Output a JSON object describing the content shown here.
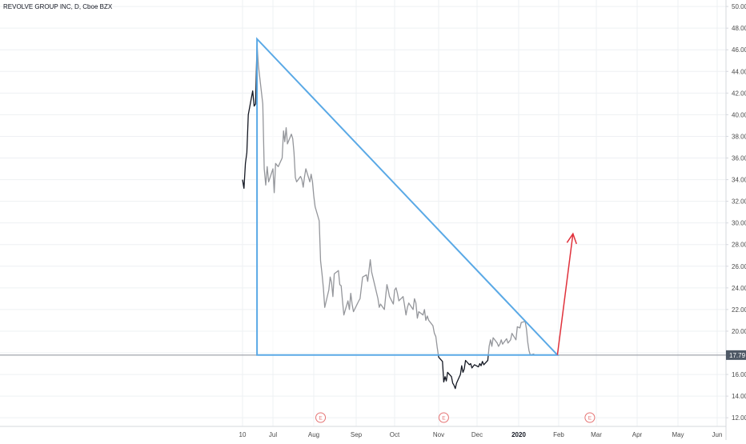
{
  "title": "REVOLVE GROUP INC, D, Cboe BZX",
  "colors": {
    "background": "#ffffff",
    "grid": "#eef0f3",
    "axis_text": "#4a4a4a",
    "price_line": "#131722",
    "price_line_faded": "#9a9a9a",
    "triangle": "#5aa9e6",
    "arrow": "#e0313b",
    "last_price_badge": "#4f5966",
    "earnings_marker": "#e57373"
  },
  "chart_data": {
    "type": "line",
    "title": "REVOLVE GROUP INC, D, Cboe BZX",
    "ylim": [
      11.2,
      50.6
    ],
    "price_axis_ticks": [
      "12.00",
      "14.00",
      "16.00",
      "18.00",
      "20.00",
      "22.00",
      "24.00",
      "26.00",
      "28.00",
      "30.00",
      "32.00",
      "34.00",
      "36.00",
      "38.00",
      "40.00",
      "42.00",
      "44.00",
      "46.00",
      "48.00",
      "50.00"
    ],
    "time_axis": [
      "10",
      "Jul",
      "Aug",
      "Sep",
      "Oct",
      "Nov",
      "Dec",
      "2020",
      "Feb",
      "Mar",
      "Apr",
      "May",
      "Jun"
    ],
    "time_axis_bold": [
      "2020"
    ],
    "last_price": "17.79",
    "grid": true,
    "series": [
      {
        "values": [
          [
            "2019-06-10",
            34.0
          ],
          [
            "2019-06-11",
            33.2
          ],
          [
            "2019-06-12",
            35.5
          ],
          [
            "2019-06-13",
            36.5
          ],
          [
            "2019-06-14",
            40.0
          ],
          [
            "2019-06-17",
            42.2
          ],
          [
            "2019-06-18",
            40.8
          ],
          [
            "2019-06-19",
            41.0
          ],
          [
            "2019-06-20",
            46.5
          ],
          [
            "2019-06-21",
            44.5
          ],
          [
            "2019-06-24",
            41.0
          ],
          [
            "2019-06-25",
            35.0
          ],
          [
            "2019-06-26",
            33.5
          ],
          [
            "2019-06-27",
            35.2
          ],
          [
            "2019-06-28",
            33.8
          ],
          [
            "2019-07-01",
            35.0
          ],
          [
            "2019-07-02",
            32.8
          ],
          [
            "2019-07-03",
            35.5
          ],
          [
            "2019-07-05",
            35.2
          ],
          [
            "2019-07-08",
            36.0
          ],
          [
            "2019-07-09",
            38.5
          ],
          [
            "2019-07-10",
            37.5
          ],
          [
            "2019-07-11",
            38.8
          ],
          [
            "2019-07-12",
            37.3
          ],
          [
            "2019-07-15",
            38.2
          ],
          [
            "2019-07-16",
            37.8
          ],
          [
            "2019-07-17",
            36.5
          ],
          [
            "2019-07-18",
            34.2
          ],
          [
            "2019-07-19",
            33.8
          ],
          [
            "2019-07-22",
            34.3
          ],
          [
            "2019-07-23",
            34.0
          ],
          [
            "2019-07-24",
            33.3
          ],
          [
            "2019-07-25",
            34.3
          ],
          [
            "2019-07-26",
            35.0
          ],
          [
            "2019-07-29",
            33.8
          ],
          [
            "2019-07-30",
            34.5
          ],
          [
            "2019-07-31",
            33.8
          ],
          [
            "2019-08-01",
            32.5
          ],
          [
            "2019-08-02",
            31.5
          ],
          [
            "2019-08-05",
            30.2
          ],
          [
            "2019-08-06",
            26.5
          ],
          [
            "2019-08-07",
            25.3
          ],
          [
            "2019-08-08",
            24.0
          ],
          [
            "2019-08-09",
            22.2
          ],
          [
            "2019-08-12",
            23.8
          ],
          [
            "2019-08-13",
            25.0
          ],
          [
            "2019-08-14",
            24.5
          ],
          [
            "2019-08-15",
            23.2
          ],
          [
            "2019-08-16",
            25.3
          ],
          [
            "2019-08-19",
            25.6
          ],
          [
            "2019-08-20",
            24.3
          ],
          [
            "2019-08-21",
            24.2
          ],
          [
            "2019-08-22",
            22.8
          ],
          [
            "2019-08-23",
            21.5
          ],
          [
            "2019-08-26",
            22.8
          ],
          [
            "2019-08-27",
            22.0
          ],
          [
            "2019-08-28",
            23.5
          ],
          [
            "2019-08-29",
            22.5
          ],
          [
            "2019-08-30",
            21.8
          ],
          [
            "2019-09-03",
            22.8
          ],
          [
            "2019-09-04",
            23.0
          ],
          [
            "2019-09-05",
            24.0
          ],
          [
            "2019-09-06",
            25.0
          ],
          [
            "2019-09-09",
            25.2
          ],
          [
            "2019-09-10",
            24.6
          ],
          [
            "2019-09-11",
            25.6
          ],
          [
            "2019-09-12",
            26.6
          ],
          [
            "2019-09-13",
            25.5
          ],
          [
            "2019-09-16",
            24.0
          ],
          [
            "2019-09-17",
            23.5
          ],
          [
            "2019-09-18",
            23.0
          ],
          [
            "2019-09-19",
            22.2
          ],
          [
            "2019-09-20",
            22.5
          ],
          [
            "2019-09-23",
            22.0
          ],
          [
            "2019-09-24",
            23.2
          ],
          [
            "2019-09-25",
            24.3
          ],
          [
            "2019-09-26",
            23.8
          ],
          [
            "2019-09-27",
            23.2
          ],
          [
            "2019-09-30",
            22.5
          ],
          [
            "2019-10-01",
            23.8
          ],
          [
            "2019-10-02",
            24.0
          ],
          [
            "2019-10-03",
            23.5
          ],
          [
            "2019-10-04",
            22.8
          ],
          [
            "2019-10-07",
            23.2
          ],
          [
            "2019-10-08",
            22.4
          ],
          [
            "2019-10-09",
            21.5
          ],
          [
            "2019-10-10",
            22.2
          ],
          [
            "2019-10-11",
            22.6
          ],
          [
            "2019-10-14",
            22.0
          ],
          [
            "2019-10-15",
            23.0
          ],
          [
            "2019-10-16",
            22.6
          ],
          [
            "2019-10-17",
            21.2
          ],
          [
            "2019-10-18",
            21.8
          ],
          [
            "2019-10-21",
            21.5
          ],
          [
            "2019-10-22",
            22.0
          ],
          [
            "2019-10-23",
            21.0
          ],
          [
            "2019-10-24",
            21.4
          ],
          [
            "2019-10-25",
            21.0
          ],
          [
            "2019-10-28",
            20.5
          ],
          [
            "2019-10-29",
            19.8
          ],
          [
            "2019-10-30",
            19.5
          ],
          [
            "2019-10-31",
            18.5
          ],
          [
            "2019-11-01",
            17.6
          ],
          [
            "2019-11-04",
            17.2
          ],
          [
            "2019-11-05",
            15.3
          ],
          [
            "2019-11-06",
            15.8
          ],
          [
            "2019-11-07",
            15.4
          ],
          [
            "2019-11-08",
            16.2
          ],
          [
            "2019-11-11",
            15.8
          ],
          [
            "2019-11-12",
            15.2
          ],
          [
            "2019-11-13",
            15.0
          ],
          [
            "2019-11-14",
            14.7
          ],
          [
            "2019-11-15",
            15.2
          ],
          [
            "2019-11-18",
            16.0
          ],
          [
            "2019-11-19",
            16.8
          ],
          [
            "2019-11-20",
            16.2
          ],
          [
            "2019-11-21",
            16.5
          ],
          [
            "2019-11-22",
            17.3
          ],
          [
            "2019-11-25",
            16.9
          ],
          [
            "2019-11-26",
            17.0
          ],
          [
            "2019-11-27",
            16.6
          ],
          [
            "2019-11-29",
            16.9
          ],
          [
            "2019-12-02",
            16.7
          ],
          [
            "2019-12-03",
            17.0
          ],
          [
            "2019-12-04",
            16.8
          ],
          [
            "2019-12-05",
            17.2
          ],
          [
            "2019-12-06",
            16.9
          ],
          [
            "2019-12-09",
            17.3
          ],
          [
            "2019-12-10",
            18.6
          ],
          [
            "2019-12-11",
            19.2
          ],
          [
            "2019-12-12",
            18.6
          ],
          [
            "2019-12-13",
            19.4
          ],
          [
            "2019-12-16",
            18.9
          ],
          [
            "2019-12-17",
            18.6
          ],
          [
            "2019-12-18",
            18.8
          ],
          [
            "2019-12-19",
            19.2
          ],
          [
            "2019-12-20",
            18.8
          ],
          [
            "2019-12-23",
            19.3
          ],
          [
            "2019-12-24",
            18.9
          ],
          [
            "2019-12-26",
            19.2
          ],
          [
            "2019-12-27",
            19.8
          ],
          [
            "2019-12-30",
            19.2
          ],
          [
            "2019-12-31",
            20.4
          ],
          [
            "2020-01-02",
            20.3
          ],
          [
            "2020-01-03",
            20.8
          ],
          [
            "2020-01-06",
            20.9
          ],
          [
            "2020-01-07",
            20.2
          ],
          [
            "2020-01-08",
            19.0
          ],
          [
            "2020-01-09",
            18.2
          ],
          [
            "2020-01-10",
            17.8
          ],
          [
            "2020-01-13",
            17.9
          ]
        ]
      }
    ],
    "annotations": {
      "earnings_markers": [
        "E",
        "E",
        "E"
      ],
      "earnings_dates": [
        "2019-08-06",
        "2019-11-05",
        "2020-02-25"
      ],
      "triangle": [
        [
          "2019-06-20",
          47.0
        ],
        [
          "2019-06-20",
          17.8
        ],
        [
          "2020-01-31",
          17.8
        ]
      ],
      "arrow": [
        [
          "2020-01-31",
          17.8
        ],
        [
          "2020-02-12",
          29.0
        ]
      ]
    }
  }
}
